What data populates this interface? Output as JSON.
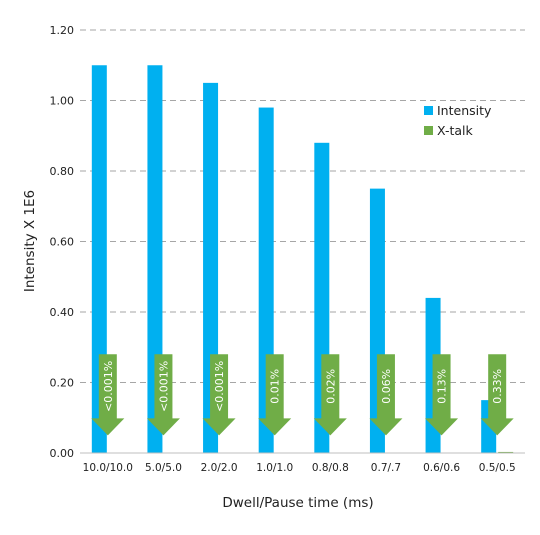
{
  "chart_data": {
    "type": "bar",
    "title": "",
    "xlabel": "Dwell/Pause time (ms)",
    "ylabel": "Intensity X 1E6",
    "ylim": [
      0,
      1.2
    ],
    "yticks": [
      "0.00",
      "0.20",
      "0.40",
      "0.60",
      "0.80",
      "1.00",
      "1.20"
    ],
    "grid": "horizontal dashed",
    "legend_position": "right",
    "categories": [
      "10.0/10.0",
      "5.0/5.0",
      "2.0/2.0",
      "1.0/1.0",
      "0.8/0.8",
      "0.7/.7",
      "0.6/0.6",
      "0.5/0.5"
    ],
    "series": [
      {
        "name": "Intensity",
        "color": "#00b0f0",
        "values": [
          1.1,
          1.1,
          1.05,
          0.98,
          0.88,
          0.75,
          0.44,
          0.15
        ]
      },
      {
        "name": "X-talk",
        "color": "#70ad47",
        "values": [
          0,
          0,
          0,
          0,
          0,
          0,
          0,
          0.003
        ],
        "labels": [
          "<0.001%",
          "<0.001%",
          "<0.001%",
          "0.01%",
          "0.02%",
          "0.06%",
          "0.13%",
          "0.33%"
        ],
        "label_arrow_span": [
          0.05,
          0.28
        ]
      }
    ]
  }
}
